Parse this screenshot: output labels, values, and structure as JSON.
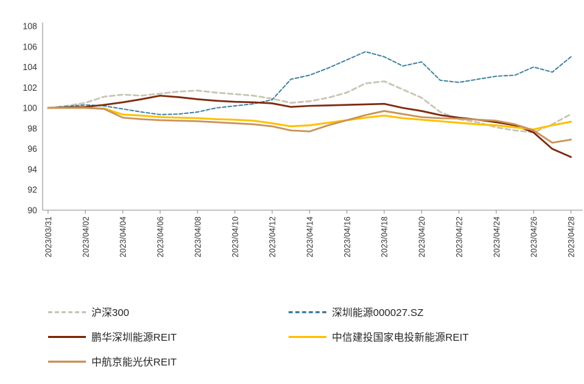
{
  "chart_data": {
    "type": "line",
    "title": "",
    "grid": false,
    "legend_position": "bottom",
    "axis_color": "#a6a6a6",
    "tick_label_color": "#333333",
    "legend_text_color": "#262626",
    "ylim": [
      90,
      108
    ],
    "ytick_step": 2,
    "label_every": 2,
    "x": [
      "2023/03/31",
      "2023/04/01",
      "2023/04/02",
      "2023/04/03",
      "2023/04/04",
      "2023/04/05",
      "2023/04/06",
      "2023/04/07",
      "2023/04/08",
      "2023/04/09",
      "2023/04/10",
      "2023/04/11",
      "2023/04/12",
      "2023/04/13",
      "2023/04/14",
      "2023/04/15",
      "2023/04/16",
      "2023/04/17",
      "2023/04/18",
      "2023/04/19",
      "2023/04/20",
      "2023/04/21",
      "2023/04/22",
      "2023/04/23",
      "2023/04/24",
      "2023/04/25",
      "2023/04/26",
      "2023/04/27",
      "2023/04/28"
    ],
    "x_labels_shown": [
      "2023/03/31",
      "2023/04/02",
      "2023/04/04",
      "2023/04/06",
      "2023/04/08",
      "2023/04/10",
      "2023/04/12",
      "2023/04/14",
      "2023/04/16",
      "2023/04/18",
      "2023/04/20",
      "2023/04/22",
      "2023/04/24",
      "2023/04/26",
      "2023/04/28"
    ],
    "series": [
      {
        "id": "hs300",
        "name": "沪深300",
        "color": "#c9c5b4",
        "dash": "7 4.5",
        "width": 2.6,
        "values": [
          100,
          100.2,
          100.5,
          101.1,
          101.3,
          101.2,
          101.4,
          101.6,
          101.7,
          101.5,
          101.35,
          101.2,
          100.9,
          100.5,
          100.65,
          101.0,
          101.5,
          102.4,
          102.6,
          101.8,
          101.0,
          99.6,
          98.9,
          98.6,
          98.1,
          97.8,
          97.6,
          98.4,
          99.4
        ]
      },
      {
        "id": "szny",
        "name": "深圳能源000027.SZ",
        "color": "#3b7f9e",
        "dash": "5 3",
        "width": 1.8,
        "values": [
          100,
          100.15,
          100.3,
          100.2,
          99.9,
          99.6,
          99.35,
          99.4,
          99.6,
          100.0,
          100.2,
          100.4,
          100.8,
          102.8,
          103.2,
          103.9,
          104.7,
          105.5,
          105.0,
          104.1,
          104.5,
          102.7,
          102.5,
          102.8,
          103.1,
          103.2,
          104.0,
          103.5,
          105.0
        ]
      },
      {
        "id": "phsz",
        "name": "鹏华深圳能源REIT",
        "color": "#7e2a0e",
        "dash": null,
        "width": 2.6,
        "values": [
          100,
          100.05,
          100.1,
          100.3,
          100.55,
          100.85,
          101.2,
          101.05,
          100.85,
          100.7,
          100.6,
          100.55,
          100.45,
          100.1,
          100.2,
          100.25,
          100.3,
          100.35,
          100.4,
          100.0,
          99.7,
          99.3,
          99.05,
          98.85,
          98.6,
          98.3,
          97.6,
          96.0,
          95.2
        ]
      },
      {
        "id": "zxjt",
        "name": "中信建投国家电投新能源REIT",
        "color": "#ffc000",
        "dash": null,
        "width": 2.8,
        "values": [
          100,
          100.0,
          100.0,
          99.95,
          99.35,
          99.25,
          99.1,
          99.05,
          99.0,
          98.9,
          98.85,
          98.75,
          98.5,
          98.2,
          98.3,
          98.55,
          98.8,
          99.05,
          99.25,
          99.0,
          98.85,
          98.7,
          98.55,
          98.4,
          98.3,
          98.1,
          97.9,
          98.3,
          98.65
        ]
      },
      {
        "id": "zhjn",
        "name": "中航京能光伏REIT",
        "color": "#c9935a",
        "dash": null,
        "width": 2.6,
        "values": [
          100,
          100.0,
          100.0,
          99.9,
          99.05,
          98.9,
          98.8,
          98.75,
          98.7,
          98.6,
          98.5,
          98.4,
          98.2,
          97.8,
          97.7,
          98.3,
          98.8,
          99.3,
          99.7,
          99.4,
          99.1,
          99.0,
          98.95,
          98.85,
          98.75,
          98.4,
          97.8,
          96.6,
          96.9
        ]
      }
    ]
  }
}
